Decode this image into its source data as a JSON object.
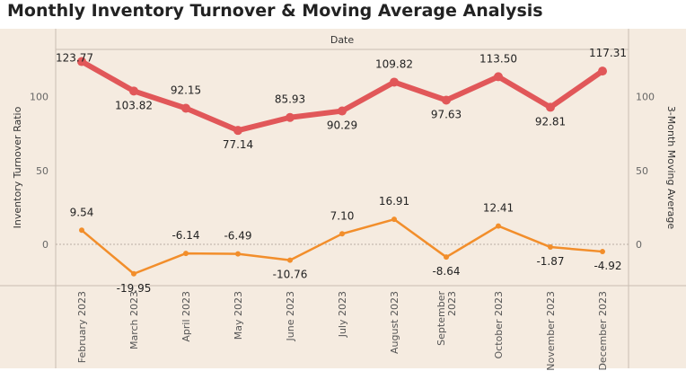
{
  "chart_data": {
    "type": "line",
    "title": "Monthly Inventory Turnover & Moving Average Analysis",
    "header_label": "Date",
    "ylabel_left": "Inventory Turnover Ratio",
    "ylabel_right": "3-Month Moving Average",
    "ylim": [
      -28,
      132
    ],
    "yticks": [
      0,
      50,
      100
    ],
    "categories": [
      "February 2023",
      "March 2023",
      "April 2023",
      "May 2023",
      "June 2023",
      "July 2023",
      "August 2023",
      "September 2023",
      "October 2023",
      "November 2023",
      "December 2023"
    ],
    "series": [
      {
        "color": "#e15759",
        "values": [
          123.77,
          103.82,
          92.15,
          77.14,
          85.93,
          90.29,
          109.82,
          97.63,
          113.5,
          92.81,
          117.31
        ],
        "labels": [
          "123.77",
          "103.82",
          "92.15",
          "77.14",
          "85.93",
          "90.29",
          "109.82",
          "97.63",
          "113.50",
          "92.81",
          "117.31"
        ]
      },
      {
        "color": "#f28e2b",
        "values": [
          9.54,
          -19.95,
          -6.14,
          -6.49,
          -10.76,
          7.1,
          16.91,
          -8.64,
          12.41,
          -1.87,
          -4.92
        ],
        "labels": [
          "9.54",
          "-19.95",
          "-6.14",
          "-6.49",
          "-10.76",
          "7.10",
          "16.91",
          "-8.64",
          "12.41",
          "-1.87",
          "-4.92"
        ]
      }
    ],
    "colors": {
      "plot_background": "#f5ebe0",
      "grid": "#c9beb2"
    }
  }
}
